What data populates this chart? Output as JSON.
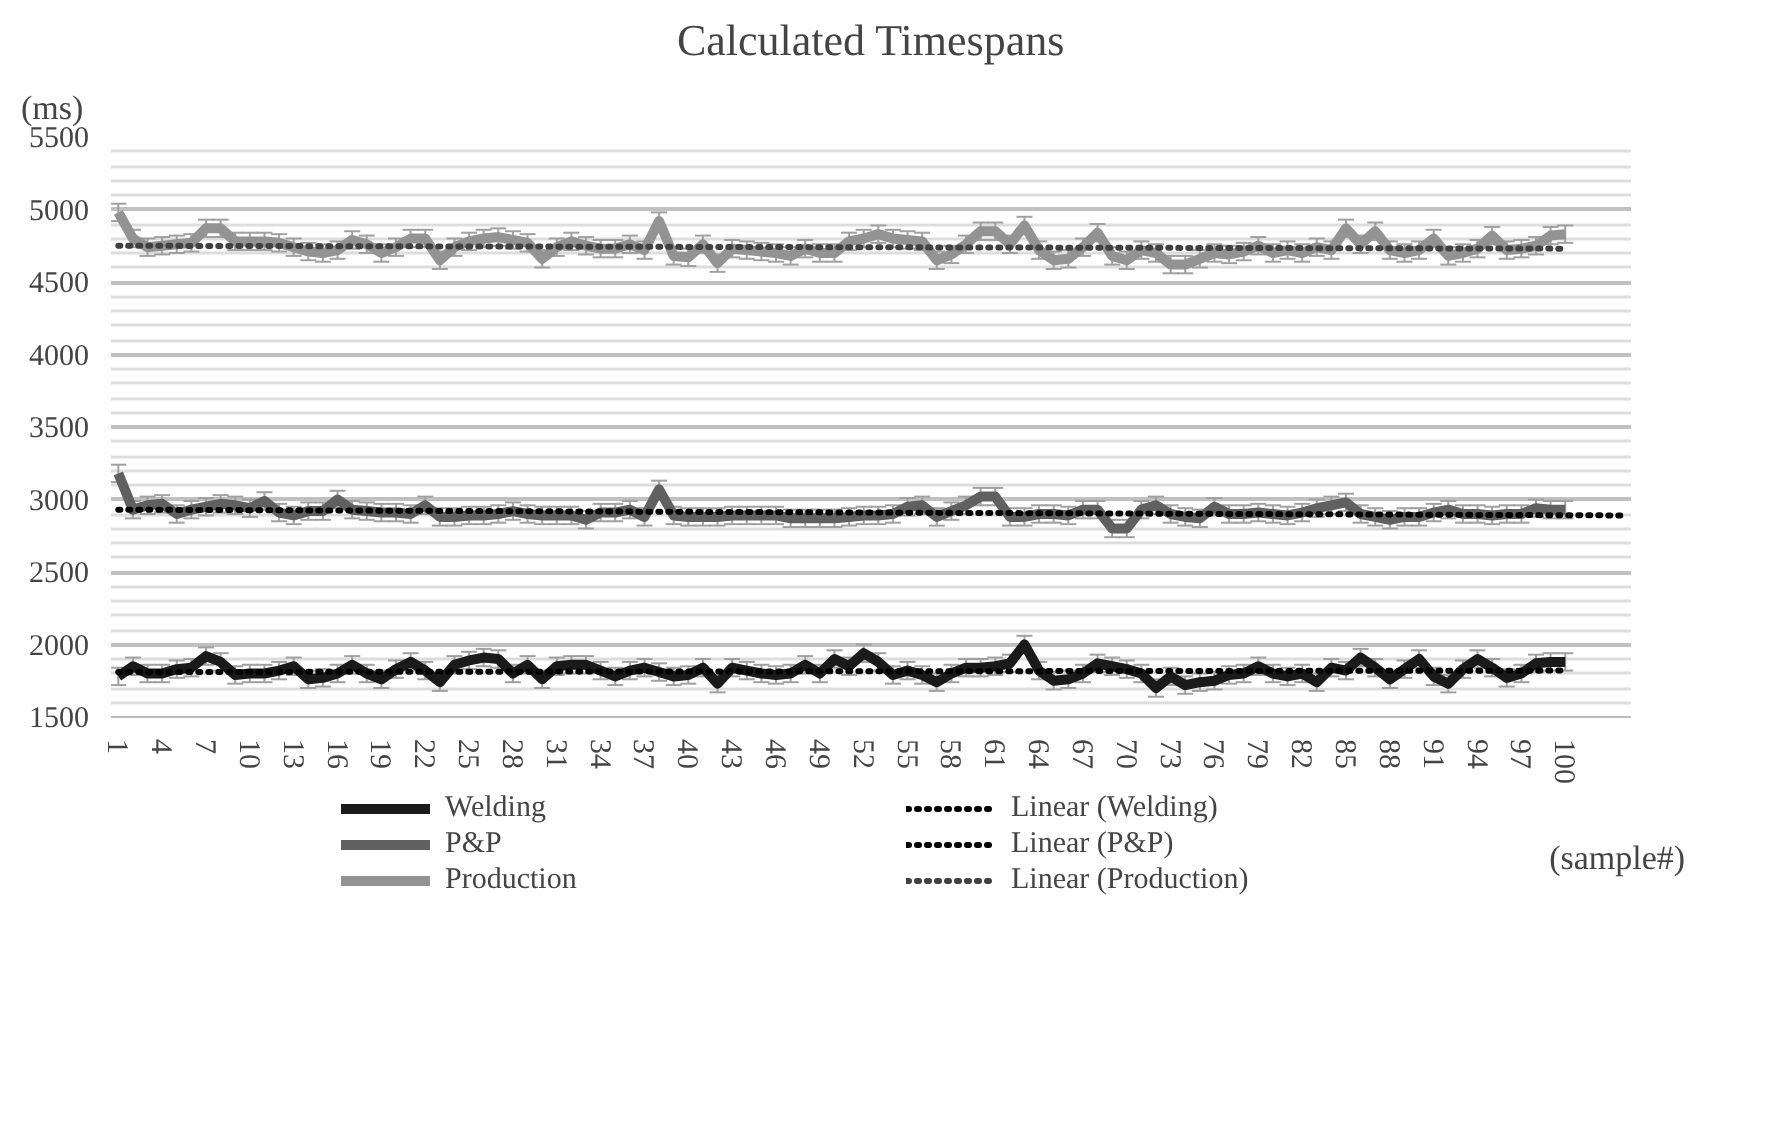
{
  "chart_data": {
    "type": "line",
    "title": "Calculated Timespans",
    "ylabel": "(ms)",
    "xlabel": "(sample#)",
    "x": [
      1,
      2,
      3,
      4,
      5,
      6,
      7,
      8,
      9,
      10,
      11,
      12,
      13,
      14,
      15,
      16,
      17,
      18,
      19,
      20,
      21,
      22,
      23,
      24,
      25,
      26,
      27,
      28,
      29,
      30,
      31,
      32,
      33,
      34,
      35,
      36,
      37,
      38,
      39,
      40,
      41,
      42,
      43,
      44,
      45,
      46,
      47,
      48,
      49,
      50,
      51,
      52,
      53,
      54,
      55,
      56,
      57,
      58,
      59,
      60,
      61,
      62,
      63,
      64,
      65,
      66,
      67,
      68,
      69,
      70,
      71,
      72,
      73,
      74,
      75,
      76,
      77,
      78,
      79,
      80,
      81,
      82,
      83,
      84,
      85,
      86,
      87,
      88,
      89,
      90,
      91,
      92,
      93,
      94,
      95,
      96,
      97,
      98,
      99,
      100
    ],
    "xlim": [
      0.5,
      104.5
    ],
    "xticks": [
      1,
      4,
      7,
      10,
      13,
      16,
      19,
      22,
      25,
      28,
      31,
      34,
      37,
      40,
      43,
      46,
      49,
      52,
      55,
      58,
      61,
      64,
      67,
      70,
      73,
      76,
      79,
      82,
      85,
      88,
      91,
      94,
      97,
      100
    ],
    "ylim": [
      1500,
      5500
    ],
    "yticks": [
      1500,
      2000,
      2500,
      3000,
      3500,
      4000,
      4500,
      5000,
      5500
    ],
    "grid": "y",
    "legend": "bottom",
    "marker": "none",
    "series": [
      {
        "name": "Welding",
        "color": "#1a1a1a",
        "line_style": "solid",
        "values": [
          1780,
          1850,
          1800,
          1800,
          1830,
          1840,
          1920,
          1880,
          1790,
          1800,
          1800,
          1820,
          1850,
          1760,
          1770,
          1800,
          1860,
          1800,
          1760,
          1830,
          1880,
          1820,
          1740,
          1860,
          1890,
          1910,
          1900,
          1800,
          1860,
          1760,
          1850,
          1860,
          1860,
          1820,
          1780,
          1820,
          1840,
          1810,
          1780,
          1790,
          1840,
          1730,
          1840,
          1820,
          1800,
          1790,
          1800,
          1860,
          1800,
          1900,
          1850,
          1940,
          1880,
          1790,
          1820,
          1790,
          1740,
          1800,
          1840,
          1840,
          1850,
          1870,
          2000,
          1820,
          1750,
          1760,
          1800,
          1870,
          1850,
          1830,
          1800,
          1700,
          1780,
          1720,
          1740,
          1750,
          1790,
          1800,
          1850,
          1800,
          1780,
          1800,
          1740,
          1840,
          1820,
          1910,
          1840,
          1760,
          1830,
          1900,
          1780,
          1730,
          1830,
          1900,
          1840,
          1770,
          1800,
          1870,
          1880,
          1880
        ],
        "errors": [
          60,
          60,
          60,
          60,
          60,
          60,
          60,
          60,
          60,
          60,
          60,
          60,
          60,
          60,
          60,
          60,
          60,
          60,
          60,
          60,
          60,
          60,
          60,
          60,
          60,
          60,
          60,
          60,
          60,
          60,
          60,
          60,
          60,
          60,
          60,
          60,
          60,
          60,
          60,
          60,
          60,
          60,
          60,
          60,
          60,
          60,
          60,
          60,
          60,
          60,
          60,
          60,
          60,
          60,
          60,
          60,
          60,
          60,
          60,
          60,
          60,
          60,
          60,
          60,
          60,
          60,
          60,
          60,
          60,
          60,
          60,
          60,
          60,
          60,
          60,
          60,
          60,
          60,
          60,
          60,
          60,
          60,
          60,
          60,
          60,
          60,
          60,
          60,
          60,
          60,
          60,
          60,
          60,
          60,
          60,
          60,
          60,
          60,
          60,
          60
        ]
      },
      {
        "name": "P&P",
        "color": "#606060",
        "line_style": "solid",
        "values": [
          3180,
          2930,
          2960,
          2970,
          2900,
          2930,
          2950,
          2970,
          2960,
          2940,
          2990,
          2910,
          2890,
          2920,
          2920,
          3000,
          2930,
          2920,
          2910,
          2910,
          2900,
          2960,
          2880,
          2880,
          2890,
          2890,
          2900,
          2920,
          2900,
          2890,
          2890,
          2890,
          2860,
          2910,
          2910,
          2930,
          2880,
          3070,
          2890,
          2880,
          2880,
          2880,
          2890,
          2890,
          2890,
          2890,
          2870,
          2870,
          2870,
          2870,
          2880,
          2890,
          2890,
          2900,
          2950,
          2960,
          2880,
          2920,
          2960,
          3020,
          3020,
          2880,
          2880,
          2900,
          2900,
          2890,
          2930,
          2930,
          2800,
          2800,
          2930,
          2960,
          2900,
          2880,
          2870,
          2950,
          2900,
          2900,
          2910,
          2900,
          2890,
          2910,
          2940,
          2960,
          2980,
          2900,
          2880,
          2860,
          2880,
          2880,
          2910,
          2930,
          2900,
          2900,
          2890,
          2900,
          2900,
          2940,
          2930,
          2930
        ],
        "errors": [
          60,
          60,
          60,
          60,
          60,
          60,
          60,
          60,
          60,
          60,
          60,
          60,
          60,
          60,
          60,
          60,
          60,
          60,
          60,
          60,
          60,
          60,
          60,
          60,
          60,
          60,
          60,
          60,
          60,
          60,
          60,
          60,
          60,
          60,
          60,
          60,
          60,
          60,
          60,
          60,
          60,
          60,
          60,
          60,
          60,
          60,
          60,
          60,
          60,
          60,
          60,
          60,
          60,
          60,
          60,
          60,
          60,
          60,
          60,
          60,
          60,
          60,
          60,
          60,
          60,
          60,
          60,
          60,
          60,
          60,
          60,
          60,
          60,
          60,
          60,
          60,
          60,
          60,
          60,
          60,
          60,
          60,
          60,
          60,
          60,
          60,
          60,
          60,
          60,
          60,
          60,
          60,
          60,
          60,
          60,
          60,
          60,
          60,
          60,
          60
        ]
      },
      {
        "name": "Production",
        "color": "#939393",
        "line_style": "solid",
        "values": [
          4980,
          4800,
          4740,
          4750,
          4760,
          4770,
          4870,
          4870,
          4780,
          4780,
          4780,
          4770,
          4740,
          4710,
          4700,
          4720,
          4790,
          4760,
          4700,
          4740,
          4800,
          4800,
          4650,
          4740,
          4780,
          4800,
          4810,
          4790,
          4770,
          4660,
          4740,
          4780,
          4750,
          4730,
          4730,
          4760,
          4720,
          4920,
          4680,
          4670,
          4760,
          4630,
          4730,
          4720,
          4710,
          4700,
          4680,
          4730,
          4700,
          4700,
          4780,
          4800,
          4830,
          4800,
          4790,
          4780,
          4650,
          4690,
          4760,
          4850,
          4850,
          4760,
          4890,
          4720,
          4650,
          4660,
          4740,
          4840,
          4680,
          4650,
          4720,
          4700,
          4620,
          4620,
          4660,
          4700,
          4690,
          4710,
          4750,
          4700,
          4720,
          4700,
          4740,
          4720,
          4870,
          4760,
          4850,
          4720,
          4700,
          4720,
          4800,
          4680,
          4700,
          4730,
          4820,
          4720,
          4730,
          4750,
          4820,
          4830
        ],
        "errors": [
          60,
          60,
          60,
          60,
          60,
          60,
          60,
          60,
          60,
          60,
          60,
          60,
          60,
          60,
          60,
          60,
          60,
          60,
          60,
          60,
          60,
          60,
          60,
          60,
          60,
          60,
          60,
          60,
          60,
          60,
          60,
          60,
          60,
          60,
          60,
          60,
          60,
          60,
          60,
          60,
          60,
          60,
          60,
          60,
          60,
          60,
          60,
          60,
          60,
          60,
          60,
          60,
          60,
          60,
          60,
          60,
          60,
          60,
          60,
          60,
          60,
          60,
          60,
          60,
          60,
          60,
          60,
          60,
          60,
          60,
          60,
          60,
          60,
          60,
          60,
          60,
          60,
          60,
          60,
          60,
          60,
          60,
          60,
          60,
          60,
          60,
          60,
          60,
          60,
          60,
          60,
          60,
          60,
          60,
          60,
          60,
          60,
          60,
          60,
          60
        ]
      },
      {
        "name": "Linear (Welding)",
        "type": "line",
        "color": "#000000",
        "line_style": "dotted",
        "x": [
          1,
          100
        ],
        "values": [
          1810,
          1820
        ]
      },
      {
        "name": "Linear (P&P)",
        "type": "line",
        "color": "#000000",
        "line_style": "dotted",
        "x": [
          1,
          104
        ],
        "values": [
          2930,
          2890
        ]
      },
      {
        "name": "Linear (Production)",
        "type": "line",
        "color": "#404040",
        "line_style": "dotted",
        "x": [
          1,
          100
        ],
        "values": [
          4750,
          4730
        ]
      }
    ]
  }
}
